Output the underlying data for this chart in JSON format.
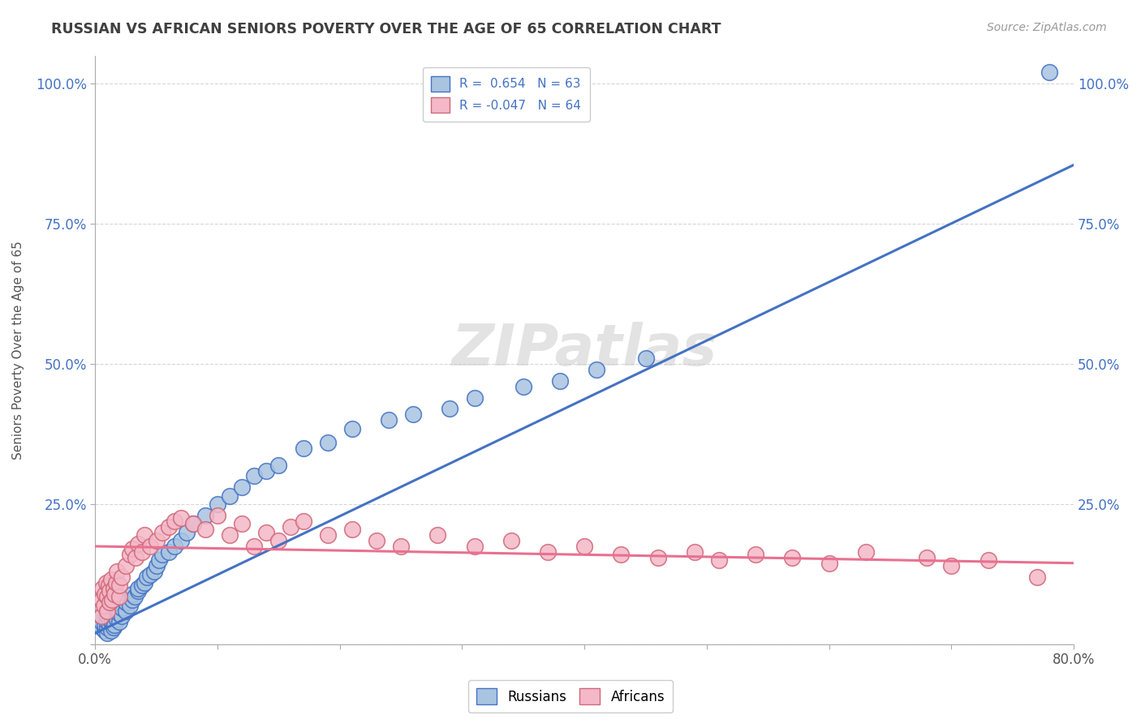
{
  "title": "RUSSIAN VS AFRICAN SENIORS POVERTY OVER THE AGE OF 65 CORRELATION CHART",
  "source": "Source: ZipAtlas.com",
  "ylabel": "Seniors Poverty Over the Age of 65",
  "xlim": [
    0.0,
    0.8
  ],
  "ylim": [
    0.0,
    1.05
  ],
  "xticks": [
    0.0,
    0.1,
    0.2,
    0.3,
    0.4,
    0.5,
    0.6,
    0.7,
    0.8
  ],
  "xticklabels": [
    "0.0%",
    "",
    "",
    "",
    "",
    "",
    "",
    "",
    "80.0%"
  ],
  "yticks": [
    0.0,
    0.25,
    0.5,
    0.75,
    1.0
  ],
  "yticklabels": [
    "",
    "25.0%",
    "50.0%",
    "75.0%",
    "100.0%"
  ],
  "russian_R": 0.654,
  "russian_N": 63,
  "african_R": -0.047,
  "african_N": 64,
  "russian_color": "#a8c4e0",
  "african_color": "#f4b8c8",
  "russian_line_color": "#4472C4",
  "african_line_color": "#E87090",
  "title_color": "#404040",
  "watermark": "ZIPatlas",
  "russian_line": [
    0.0,
    0.02,
    0.8,
    0.855
  ],
  "african_line": [
    0.0,
    0.175,
    0.8,
    0.145
  ],
  "russians_x": [
    0.005,
    0.005,
    0.005,
    0.008,
    0.008,
    0.01,
    0.01,
    0.01,
    0.01,
    0.012,
    0.012,
    0.013,
    0.014,
    0.015,
    0.015,
    0.015,
    0.016,
    0.018,
    0.018,
    0.02,
    0.02,
    0.022,
    0.022,
    0.025,
    0.025,
    0.028,
    0.03,
    0.03,
    0.032,
    0.035,
    0.035,
    0.038,
    0.04,
    0.042,
    0.045,
    0.048,
    0.05,
    0.052,
    0.055,
    0.06,
    0.065,
    0.07,
    0.075,
    0.08,
    0.09,
    0.1,
    0.11,
    0.12,
    0.13,
    0.14,
    0.15,
    0.17,
    0.19,
    0.21,
    0.24,
    0.26,
    0.29,
    0.31,
    0.35,
    0.38,
    0.41,
    0.45,
    0.78
  ],
  "russians_y": [
    0.03,
    0.04,
    0.05,
    0.025,
    0.035,
    0.02,
    0.03,
    0.04,
    0.05,
    0.035,
    0.045,
    0.025,
    0.04,
    0.03,
    0.05,
    0.06,
    0.035,
    0.045,
    0.06,
    0.04,
    0.055,
    0.05,
    0.065,
    0.06,
    0.075,
    0.07,
    0.08,
    0.09,
    0.085,
    0.095,
    0.1,
    0.105,
    0.11,
    0.12,
    0.125,
    0.13,
    0.14,
    0.15,
    0.16,
    0.165,
    0.175,
    0.185,
    0.2,
    0.215,
    0.23,
    0.25,
    0.265,
    0.28,
    0.3,
    0.31,
    0.32,
    0.35,
    0.36,
    0.385,
    0.4,
    0.41,
    0.42,
    0.44,
    0.46,
    0.47,
    0.49,
    0.51,
    1.02
  ],
  "africans_x": [
    0.005,
    0.005,
    0.006,
    0.007,
    0.008,
    0.009,
    0.01,
    0.01,
    0.011,
    0.012,
    0.012,
    0.013,
    0.014,
    0.015,
    0.016,
    0.017,
    0.018,
    0.02,
    0.02,
    0.022,
    0.025,
    0.028,
    0.03,
    0.033,
    0.035,
    0.038,
    0.04,
    0.045,
    0.05,
    0.055,
    0.06,
    0.065,
    0.07,
    0.08,
    0.09,
    0.1,
    0.11,
    0.12,
    0.13,
    0.14,
    0.15,
    0.16,
    0.17,
    0.19,
    0.21,
    0.23,
    0.25,
    0.28,
    0.31,
    0.34,
    0.37,
    0.4,
    0.43,
    0.46,
    0.49,
    0.51,
    0.54,
    0.57,
    0.6,
    0.63,
    0.68,
    0.7,
    0.73,
    0.77
  ],
  "africans_y": [
    0.05,
    0.08,
    0.1,
    0.07,
    0.09,
    0.11,
    0.06,
    0.085,
    0.105,
    0.075,
    0.095,
    0.115,
    0.08,
    0.1,
    0.09,
    0.11,
    0.13,
    0.085,
    0.105,
    0.12,
    0.14,
    0.16,
    0.17,
    0.155,
    0.18,
    0.165,
    0.195,
    0.175,
    0.185,
    0.2,
    0.21,
    0.22,
    0.225,
    0.215,
    0.205,
    0.23,
    0.195,
    0.215,
    0.175,
    0.2,
    0.185,
    0.21,
    0.22,
    0.195,
    0.205,
    0.185,
    0.175,
    0.195,
    0.175,
    0.185,
    0.165,
    0.175,
    0.16,
    0.155,
    0.165,
    0.15,
    0.16,
    0.155,
    0.145,
    0.165,
    0.155,
    0.14,
    0.15,
    0.12
  ]
}
